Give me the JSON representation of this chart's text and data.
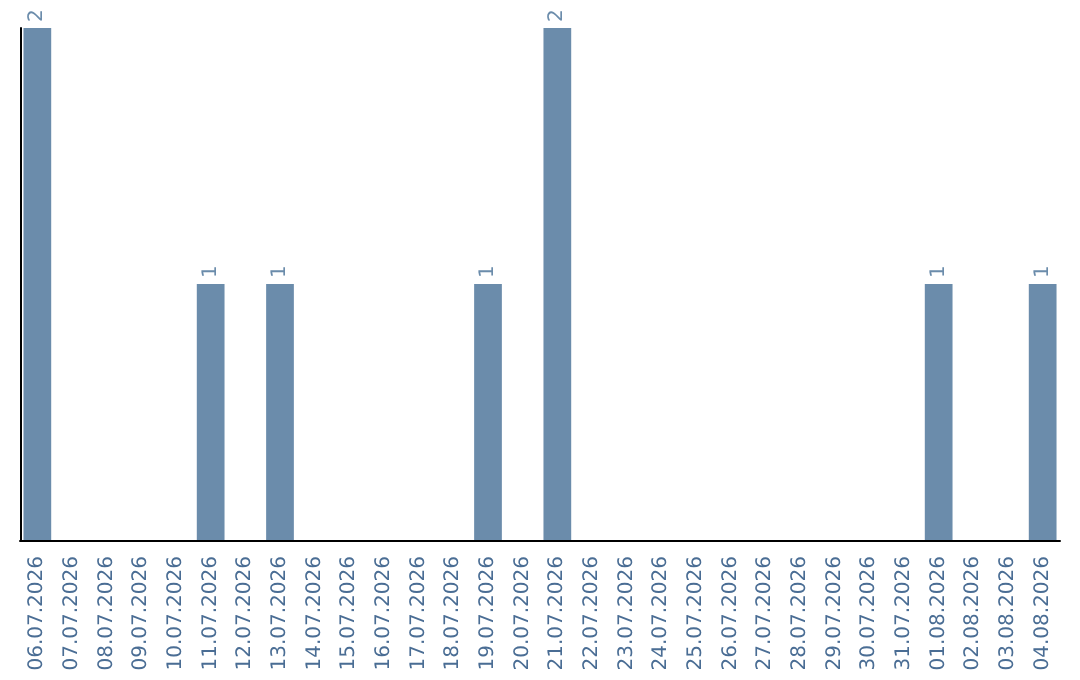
{
  "chart_data": {
    "type": "bar",
    "categories": [
      "06.07.2026",
      "07.07.2026",
      "08.07.2026",
      "09.07.2026",
      "10.07.2026",
      "11.07.2026",
      "12.07.2026",
      "13.07.2026",
      "14.07.2026",
      "15.07.2026",
      "16.07.2026",
      "17.07.2026",
      "18.07.2026",
      "19.07.2026",
      "20.07.2026",
      "21.07.2026",
      "22.07.2026",
      "23.07.2026",
      "24.07.2026",
      "25.07.2026",
      "26.07.2026",
      "27.07.2026",
      "28.07.2026",
      "29.07.2026",
      "30.07.2026",
      "31.07.2026",
      "01.08.2026",
      "02.08.2026",
      "03.08.2026",
      "04.08.2026"
    ],
    "values": [
      2,
      0,
      0,
      0,
      0,
      1,
      0,
      1,
      0,
      0,
      0,
      0,
      0,
      1,
      0,
      2,
      0,
      0,
      0,
      0,
      0,
      0,
      0,
      0,
      0,
      0,
      1,
      0,
      0,
      1
    ],
    "value_labels": [
      "2",
      null,
      null,
      null,
      null,
      "1",
      null,
      "1",
      null,
      null,
      null,
      null,
      null,
      "1",
      null,
      "2",
      null,
      null,
      null,
      null,
      null,
      null,
      null,
      null,
      null,
      null,
      "1",
      null,
      null,
      "1"
    ],
    "color": "#6b8cab",
    "tick_labels": "x"
  }
}
